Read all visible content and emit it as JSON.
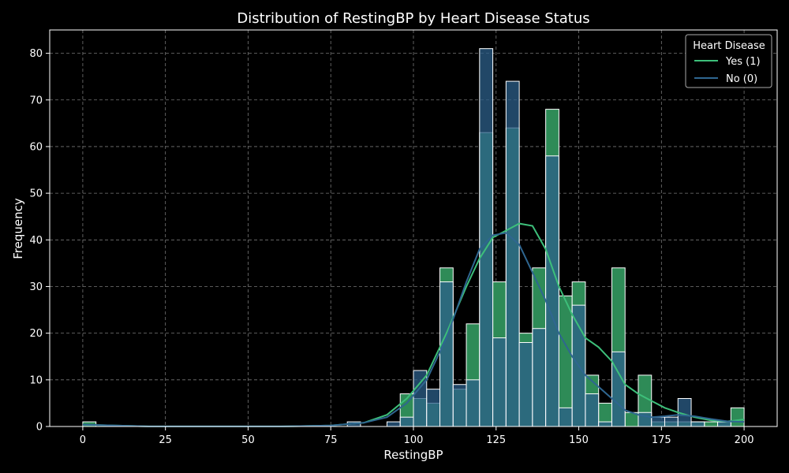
{
  "chart_data": {
    "type": "bar",
    "title": "Distribution of RestingBP by Heart Disease Status",
    "xlabel": "RestingBP",
    "ylabel": "Frequency",
    "xlim": [
      -10,
      210
    ],
    "ylim": [
      0,
      85
    ],
    "xticks": [
      0,
      25,
      50,
      75,
      100,
      125,
      150,
      175,
      200
    ],
    "yticks": [
      0,
      10,
      20,
      30,
      40,
      50,
      60,
      70,
      80
    ],
    "grid": true,
    "legend": {
      "title": "Heart Disease",
      "placement": "top-right"
    },
    "bin_width": 4,
    "series": [
      {
        "name": "Yes (1)",
        "color": "#2e8b57",
        "edge": "#ffffff",
        "bins": [
          [
            0,
            1
          ],
          [
            80,
            0
          ],
          [
            92,
            0
          ],
          [
            96,
            7
          ],
          [
            100,
            6
          ],
          [
            104,
            5
          ],
          [
            108,
            34
          ],
          [
            112,
            8
          ],
          [
            116,
            22
          ],
          [
            120,
            63
          ],
          [
            124,
            31
          ],
          [
            128,
            64
          ],
          [
            132,
            20
          ],
          [
            136,
            34
          ],
          [
            140,
            68
          ],
          [
            144,
            28
          ],
          [
            148,
            31
          ],
          [
            152,
            11
          ],
          [
            156,
            5
          ],
          [
            160,
            34
          ],
          [
            164,
            3
          ],
          [
            168,
            11
          ],
          [
            172,
            1
          ],
          [
            176,
            1
          ],
          [
            180,
            1
          ],
          [
            184,
            1
          ],
          [
            188,
            1
          ],
          [
            192,
            1
          ],
          [
            196,
            4
          ]
        ],
        "kde": [
          [
            0,
            0.4
          ],
          [
            20,
            0.02
          ],
          [
            40,
            0.01
          ],
          [
            60,
            0.01
          ],
          [
            75,
            0.2
          ],
          [
            85,
            0.8
          ],
          [
            92,
            2.5
          ],
          [
            98,
            6
          ],
          [
            104,
            11
          ],
          [
            110,
            20
          ],
          [
            116,
            30
          ],
          [
            120,
            36
          ],
          [
            124,
            40.5
          ],
          [
            128,
            42
          ],
          [
            132,
            43.5
          ],
          [
            136,
            43
          ],
          [
            140,
            38
          ],
          [
            144,
            30
          ],
          [
            148,
            24
          ],
          [
            152,
            19
          ],
          [
            156,
            17
          ],
          [
            160,
            14
          ],
          [
            164,
            9
          ],
          [
            168,
            7
          ],
          [
            172,
            5.5
          ],
          [
            176,
            4
          ],
          [
            180,
            3
          ],
          [
            185,
            2
          ],
          [
            190,
            1.3
          ],
          [
            195,
            1.1
          ],
          [
            200,
            1.5
          ]
        ]
      },
      {
        "name": "No (0)",
        "color": "#2c5f8a",
        "edge": "#ffffff",
        "bins": [
          [
            0,
            0
          ],
          [
            80,
            1
          ],
          [
            92,
            1
          ],
          [
            96,
            2
          ],
          [
            100,
            12
          ],
          [
            104,
            8
          ],
          [
            108,
            31
          ],
          [
            112,
            9
          ],
          [
            116,
            10
          ],
          [
            120,
            81
          ],
          [
            124,
            19
          ],
          [
            128,
            74
          ],
          [
            132,
            18
          ],
          [
            136,
            21
          ],
          [
            140,
            58
          ],
          [
            144,
            4
          ],
          [
            148,
            26
          ],
          [
            152,
            7
          ],
          [
            156,
            1
          ],
          [
            160,
            16
          ],
          [
            164,
            0
          ],
          [
            168,
            3
          ],
          [
            172,
            2
          ],
          [
            176,
            2
          ],
          [
            180,
            6
          ],
          [
            184,
            1
          ],
          [
            188,
            0
          ],
          [
            192,
            1
          ],
          [
            196,
            0
          ]
        ],
        "kde": [
          [
            0,
            0.4
          ],
          [
            20,
            0.02
          ],
          [
            40,
            0.01
          ],
          [
            60,
            0.01
          ],
          [
            75,
            0.2
          ],
          [
            85,
            0.8
          ],
          [
            92,
            2
          ],
          [
            98,
            5
          ],
          [
            104,
            10
          ],
          [
            110,
            19
          ],
          [
            116,
            31
          ],
          [
            120,
            38
          ],
          [
            124,
            41
          ],
          [
            128,
            41.5
          ],
          [
            132,
            39
          ],
          [
            136,
            33
          ],
          [
            140,
            27
          ],
          [
            144,
            20
          ],
          [
            148,
            15
          ],
          [
            152,
            11
          ],
          [
            156,
            8.5
          ],
          [
            160,
            6
          ],
          [
            164,
            3.5
          ],
          [
            168,
            2.5
          ],
          [
            172,
            2
          ],
          [
            176,
            2.2
          ],
          [
            180,
            2.5
          ],
          [
            185,
            2.2
          ],
          [
            190,
            1.6
          ],
          [
            195,
            1.1
          ],
          [
            200,
            1
          ]
        ]
      }
    ]
  }
}
